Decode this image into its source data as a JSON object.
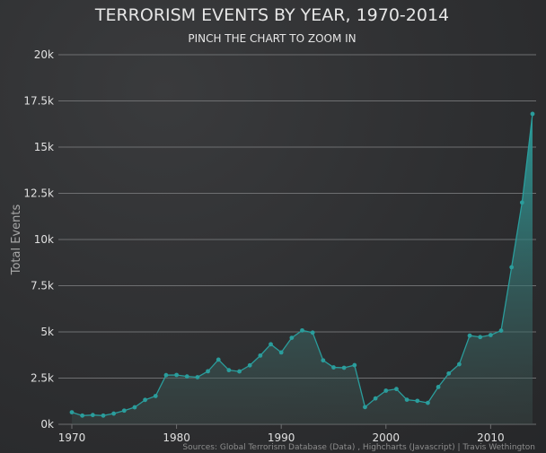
{
  "chart_data": {
    "type": "area",
    "title": "TERRORISM EVENTS BY YEAR, 1970-2014",
    "subtitle": "PINCH THE CHART TO ZOOM IN",
    "xlabel": "",
    "ylabel": "Total Events",
    "xlim": [
      1969,
      2014
    ],
    "ylim": [
      0,
      20000
    ],
    "x_ticks": [
      1970,
      1980,
      1990,
      2000,
      2010
    ],
    "y_ticks": [
      0,
      2500,
      5000,
      7500,
      10000,
      12500,
      15000,
      17500,
      20000
    ],
    "x_tick_labels": [
      "1970",
      "1980",
      "1990",
      "2000",
      "2010"
    ],
    "y_tick_labels": [
      "0k",
      "2.5k",
      "5k",
      "7.5k",
      "10k",
      "12.5k",
      "15k",
      "17.5k",
      "20k"
    ],
    "grid": "horizontal",
    "series": [
      {
        "name": "",
        "color": "#2a9d9c",
        "x": [
          1970,
          1971,
          1972,
          1973,
          1974,
          1975,
          1976,
          1977,
          1978,
          1979,
          1980,
          1981,
          1982,
          1983,
          1984,
          1985,
          1986,
          1987,
          1988,
          1989,
          1990,
          1991,
          1992,
          1993,
          1994,
          1995,
          1996,
          1997,
          1998,
          1999,
          2000,
          2001,
          2002,
          2003,
          2004,
          2005,
          2006,
          2007,
          2008,
          2009,
          2010,
          2011,
          2012,
          2013,
          2014
        ],
        "values": [
          650,
          470,
          500,
          470,
          580,
          740,
          920,
          1320,
          1530,
          2660,
          2670,
          2590,
          2550,
          2870,
          3500,
          2930,
          2860,
          3190,
          3720,
          4330,
          3890,
          4680,
          5080,
          4960,
          3460,
          3080,
          3060,
          3200,
          930,
          1400,
          1820,
          1910,
          1330,
          1270,
          1160,
          2020,
          2750,
          3250,
          4800,
          4720,
          4830,
          5070,
          8500,
          12000,
          16800
        ]
      }
    ]
  },
  "credits": "Sources: Global Terrorism Database (Data) , Highcharts (Javascript) | Travis Wethington",
  "colors": {
    "line": "#2a9d9c",
    "area_top": "#2a9d9c",
    "area_bottom": "#3a4a4a",
    "grid": "#6e6f71",
    "background": "#2e2f31"
  }
}
